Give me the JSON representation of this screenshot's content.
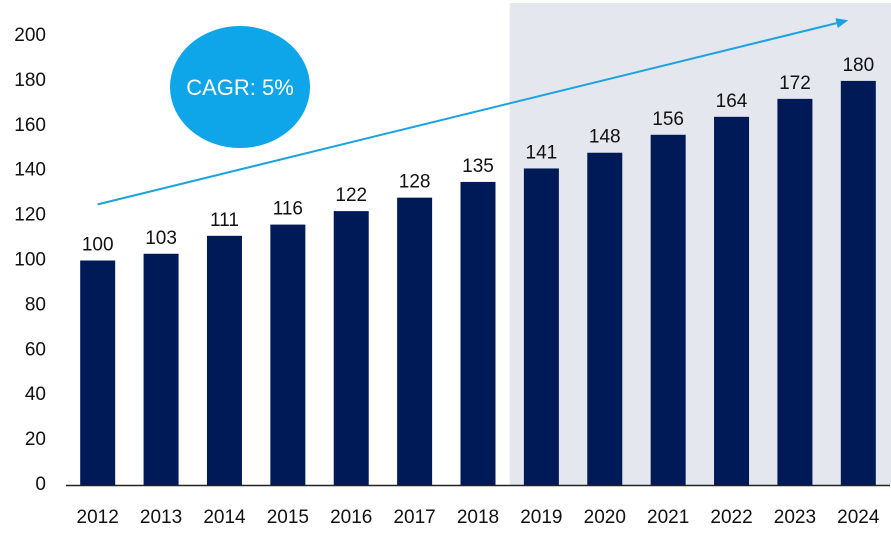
{
  "chart_data": {
    "type": "bar",
    "title": "",
    "xlabel": "",
    "ylabel": "",
    "categories": [
      "2012",
      "2013",
      "2014",
      "2015",
      "2016",
      "2017",
      "2018",
      "2019",
      "2020",
      "2021",
      "2022",
      "2023",
      "2024"
    ],
    "values": [
      100,
      103,
      111,
      116,
      122,
      128,
      135,
      141,
      148,
      156,
      164,
      172,
      180
    ],
    "ylim": [
      0,
      200
    ],
    "yticks": [
      0,
      20,
      40,
      60,
      80,
      100,
      120,
      140,
      160,
      180,
      200
    ],
    "grid": false,
    "legend": "none",
    "data_labels": true,
    "shaded_region": {
      "from_category": "2019",
      "to_category": "2024",
      "color": "#e4e7ee"
    },
    "trend_arrow": {
      "from": {
        "x": "2012",
        "y": 125
      },
      "to": {
        "x": "2024",
        "y": 207
      },
      "color": "#1aa3e0"
    },
    "annotation": {
      "text": "CAGR: 5%",
      "shape": "ellipse",
      "color": "#0ea5e9"
    },
    "colors": {
      "bar": "#001a57",
      "axis": "#222222",
      "text": "#111111",
      "shade": "#e4e7ee",
      "arrow": "#1aa3e0",
      "badge": "#0ea5e9"
    }
  }
}
